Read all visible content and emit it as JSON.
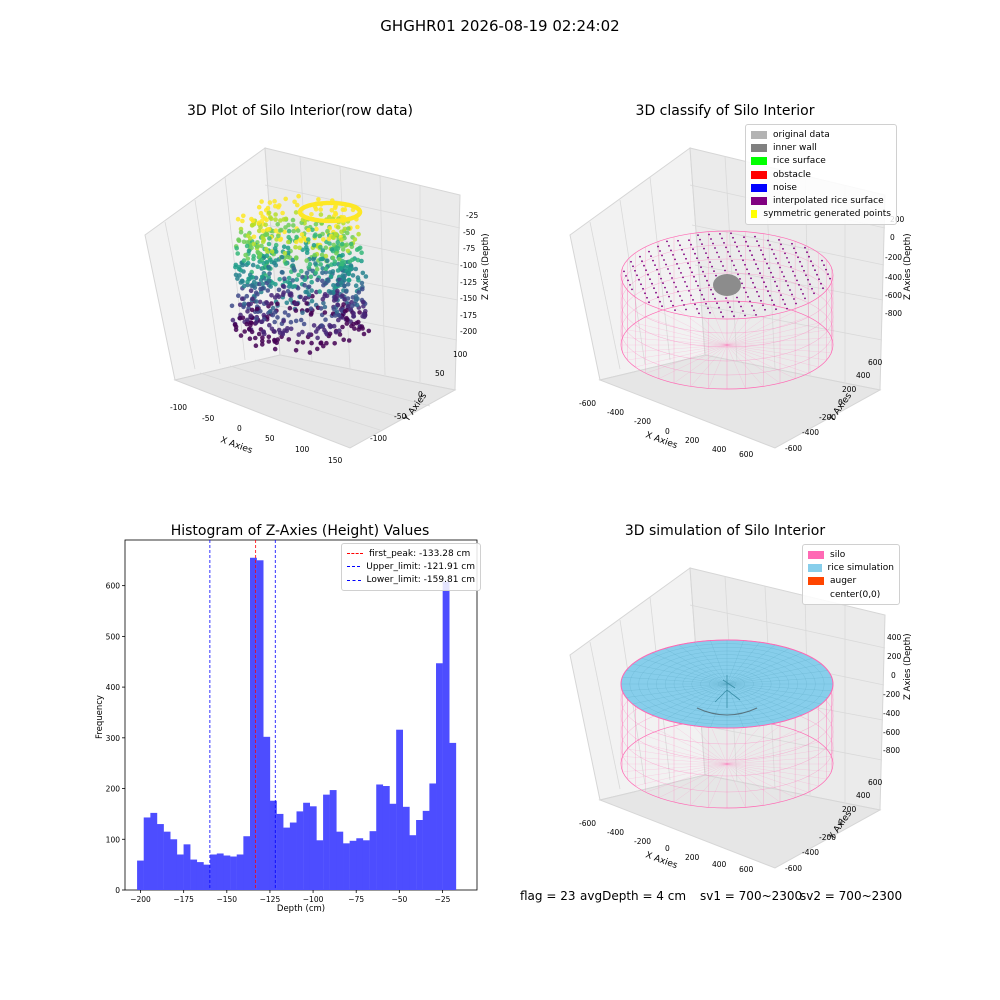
{
  "suptitle": "GHGHR01 2026-08-19 02:24:02",
  "status": {
    "flag": "flag = 23",
    "avg_depth": "avgDepth = 4 cm",
    "sv1": "sv1 = 700~2300",
    "sv2": "sv2 = 700~2300"
  },
  "chart_data": [
    {
      "type": "scatter",
      "title": "3D Plot of Silo Interior(row data)",
      "xlabel": "X Axies",
      "ylabel": "Y Axies",
      "zlabel": "Z Axies (Depth)",
      "x_ticks": [
        "-100",
        "-50",
        "0",
        "50",
        "100",
        "150"
      ],
      "y_ticks": [
        "-100",
        "-50",
        "0",
        "50",
        "100"
      ],
      "z_ticks": [
        "-25",
        "-50",
        "-75",
        "-100",
        "-125",
        "-150",
        "-175",
        "-200"
      ],
      "colormap": "viridis",
      "zlim": [
        -210,
        -15
      ]
    },
    {
      "type": "scatter",
      "title": "3D classify of Silo Interior",
      "xlabel": "X Axies",
      "ylabel": "Y Axies",
      "zlabel": "Z Axies (Depth)",
      "x_ticks": [
        "-600",
        "-400",
        "-200",
        "0",
        "200",
        "400",
        "600"
      ],
      "y_ticks": [
        "-600",
        "-400",
        "-200",
        "0",
        "200",
        "400",
        "600"
      ],
      "z_ticks": [
        "200",
        "0",
        "-200",
        "-400",
        "-600",
        "-800"
      ],
      "legend": [
        {
          "label": "original data",
          "color": "#b3b3b3"
        },
        {
          "label": "inner wall",
          "color": "#808080"
        },
        {
          "label": "rice surface",
          "color": "#00ff00"
        },
        {
          "label": "obstacle",
          "color": "#ff0000"
        },
        {
          "label": "noise",
          "color": "#0000ff"
        },
        {
          "label": "interpolated rice surface",
          "color": "#800080"
        },
        {
          "label": "symmetric generated points",
          "color": "#ffff00"
        }
      ]
    },
    {
      "type": "bar",
      "title": "Histogram of Z-Axies (Height) Values",
      "xlabel": "Depth (cm)",
      "ylabel": "Frequency",
      "xlim": [
        -209,
        -5
      ],
      "ylim": [
        0,
        690
      ],
      "x_ticks": [
        -200,
        -175,
        -150,
        -125,
        -100,
        -75,
        -50,
        -25
      ],
      "y_ticks": [
        0,
        100,
        200,
        300,
        400,
        500,
        600
      ],
      "bar_color": "#4d4dff",
      "bin_start": -202.0,
      "bin_width": 3.85,
      "values": [
        58,
        143,
        152,
        130,
        115,
        100,
        70,
        90,
        60,
        55,
        50,
        70,
        72,
        68,
        66,
        70,
        106,
        655,
        650,
        302,
        176,
        150,
        123,
        133,
        155,
        172,
        165,
        98,
        188,
        197,
        115,
        92,
        97,
        102,
        98,
        116,
        208,
        205,
        170,
        316,
        164,
        108,
        138,
        156,
        210,
        447,
        608,
        290
      ],
      "vlines": [
        {
          "label": "first_peak: -133.28 cm",
          "x": -133.28,
          "color": "#ff0000"
        },
        {
          "label": "Upper_limit: -121.91 cm",
          "x": -121.91,
          "color": "#0000ff"
        },
        {
          "label": "Lower_limit: -159.81 cm",
          "x": -159.81,
          "color": "#0000ff"
        }
      ],
      "grid": false,
      "legend_position": "top-right"
    },
    {
      "type": "scatter",
      "title": "3D simulation of Silo Interior",
      "xlabel": "X Axies",
      "ylabel": "Y Axies",
      "zlabel": "Z Axies (Depth)",
      "x_ticks": [
        "-600",
        "-400",
        "-200",
        "0",
        "200",
        "400",
        "600"
      ],
      "y_ticks": [
        "-600",
        "-400",
        "-200",
        "0",
        "200",
        "400",
        "600"
      ],
      "z_ticks": [
        "400",
        "200",
        "0",
        "-200",
        "-400",
        "-600",
        "-800"
      ],
      "legend": [
        {
          "label": "silo",
          "color": "#ff69b4"
        },
        {
          "label": "rice simulation",
          "color": "#87ceeb"
        },
        {
          "label": "auger",
          "color": "#ff4500"
        },
        {
          "label": "center(0,0)",
          "color": ""
        }
      ]
    }
  ]
}
